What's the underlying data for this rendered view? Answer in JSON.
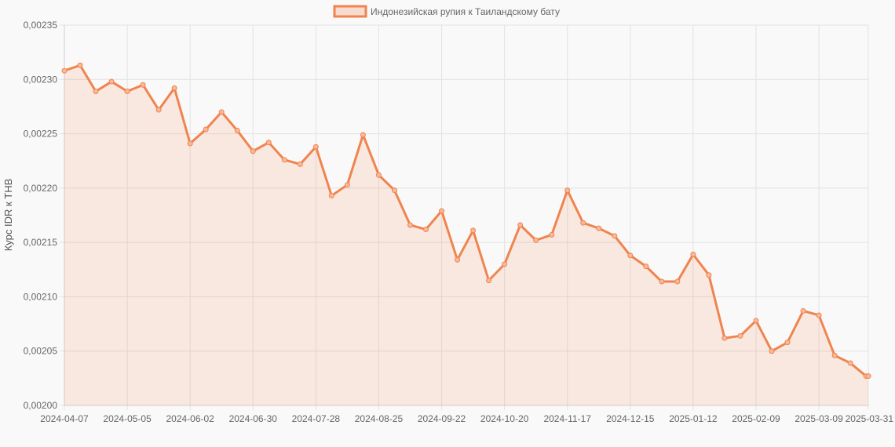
{
  "chart_data": {
    "type": "area",
    "ylabel": "Курс IDR к THB",
    "legend": {
      "label": "Индонезийская рупия к Таиландскому бату",
      "placement": "top-center"
    },
    "colors": {
      "line": "#f0844f",
      "fill": "#f0844f",
      "grid": "#e2e2e2",
      "background": "#f9f9f9"
    },
    "grid": true,
    "ylim": [
      0.002,
      0.00235
    ],
    "y_ticks": [
      "0,00200",
      "0,00205",
      "0,00210",
      "0,00215",
      "0,00220",
      "0,00225",
      "0,00230",
      "0,00235"
    ],
    "x_ticks": [
      "2024-04-07",
      "2024-05-05",
      "2024-06-02",
      "2024-06-30",
      "2024-07-28",
      "2024-08-25",
      "2024-09-22",
      "2024-10-20",
      "2024-11-17",
      "2024-12-15",
      "2025-01-12",
      "2025-02-09",
      "2025-03-09",
      "2025-03-31"
    ],
    "series": [
      {
        "name": "Индонезийская рупия к Таиландскому бату",
        "x": [
          "2024-04-07",
          "2024-04-14",
          "2024-04-21",
          "2024-04-28",
          "2024-05-05",
          "2024-05-12",
          "2024-05-19",
          "2024-05-26",
          "2024-06-02",
          "2024-06-09",
          "2024-06-16",
          "2024-06-23",
          "2024-06-30",
          "2024-07-07",
          "2024-07-14",
          "2024-07-21",
          "2024-07-28",
          "2024-08-04",
          "2024-08-11",
          "2024-08-18",
          "2024-08-25",
          "2024-09-01",
          "2024-09-08",
          "2024-09-15",
          "2024-09-22",
          "2024-09-29",
          "2024-10-06",
          "2024-10-13",
          "2024-10-20",
          "2024-10-27",
          "2024-11-03",
          "2024-11-10",
          "2024-11-17",
          "2024-11-24",
          "2024-12-01",
          "2024-12-08",
          "2024-12-15",
          "2024-12-22",
          "2024-12-29",
          "2025-01-05",
          "2025-01-12",
          "2025-01-19",
          "2025-01-26",
          "2025-02-02",
          "2025-02-09",
          "2025-02-16",
          "2025-02-23",
          "2025-03-02",
          "2025-03-09",
          "2025-03-16",
          "2025-03-23",
          "2025-03-30",
          "2025-03-31"
        ],
        "values": [
          0.002308,
          0.002313,
          0.002289,
          0.002298,
          0.002289,
          0.002295,
          0.002272,
          0.002292,
          0.002241,
          0.002254,
          0.00227,
          0.002253,
          0.002234,
          0.002242,
          0.002226,
          0.002222,
          0.002238,
          0.002193,
          0.002203,
          0.002249,
          0.002212,
          0.002198,
          0.002166,
          0.002162,
          0.002179,
          0.002134,
          0.002161,
          0.002115,
          0.00213,
          0.002166,
          0.002152,
          0.002157,
          0.002198,
          0.002168,
          0.002163,
          0.002156,
          0.002138,
          0.002128,
          0.002114,
          0.002114,
          0.002139,
          0.00212,
          0.002062,
          0.002064,
          0.002078,
          0.00205,
          0.002058,
          0.002087,
          0.002083,
          0.002046,
          0.002039,
          0.002027,
          0.002027
        ]
      }
    ]
  }
}
